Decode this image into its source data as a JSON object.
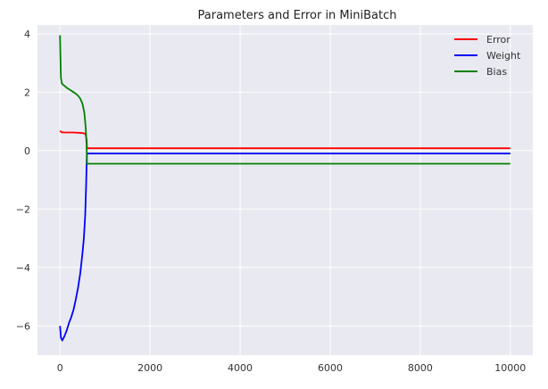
{
  "chart_data": {
    "type": "line",
    "title": "Parameters and Error in MiniBatch",
    "xlabel": "",
    "ylabel": "",
    "xlim": [
      -500,
      10500
    ],
    "ylim": [
      -7,
      4.3
    ],
    "x_ticks": [
      0,
      2000,
      4000,
      6000,
      8000,
      10000
    ],
    "y_ticks": [
      -6,
      -4,
      -2,
      0,
      2,
      4
    ],
    "grid": true,
    "legend_position": "top-right",
    "background": "#e9e9f1",
    "series": [
      {
        "name": "Error",
        "color": "#ff0000",
        "x": [
          0,
          30,
          100,
          200,
          300,
          400,
          500,
          560,
          590,
          600,
          620,
          700,
          1000,
          2000,
          4000,
          6000,
          8000,
          10000
        ],
        "y": [
          0.68,
          0.63,
          0.62,
          0.62,
          0.62,
          0.61,
          0.6,
          0.58,
          0.4,
          0.1,
          0.08,
          0.08,
          0.08,
          0.08,
          0.08,
          0.08,
          0.08,
          0.08
        ]
      },
      {
        "name": "Weight",
        "color": "#0000ff",
        "x": [
          0,
          20,
          50,
          100,
          150,
          200,
          250,
          300,
          350,
          400,
          450,
          500,
          530,
          560,
          580,
          595,
          600,
          620,
          700,
          1000,
          2000,
          4000,
          6000,
          8000,
          10000
        ],
        "y": [
          -6.0,
          -6.4,
          -6.5,
          -6.35,
          -6.15,
          -5.9,
          -5.7,
          -5.45,
          -5.1,
          -4.7,
          -4.2,
          -3.5,
          -3.0,
          -2.2,
          -1.2,
          -0.2,
          -0.1,
          -0.1,
          -0.1,
          -0.1,
          -0.1,
          -0.1,
          -0.1,
          -0.1,
          -0.1
        ]
      },
      {
        "name": "Bias",
        "color": "#008000",
        "x": [
          0,
          10,
          20,
          40,
          70,
          100,
          150,
          200,
          250,
          300,
          350,
          400,
          450,
          500,
          540,
          570,
          590,
          600,
          620,
          700,
          1000,
          2000,
          4000,
          6000,
          8000,
          10000
        ],
        "y": [
          3.95,
          3.2,
          2.5,
          2.3,
          2.25,
          2.22,
          2.15,
          2.1,
          2.05,
          2.0,
          1.95,
          1.88,
          1.78,
          1.6,
          1.3,
          0.8,
          0.2,
          -0.45,
          -0.45,
          -0.45,
          -0.45,
          -0.45,
          -0.45,
          -0.45,
          -0.45,
          -0.45
        ]
      }
    ]
  }
}
